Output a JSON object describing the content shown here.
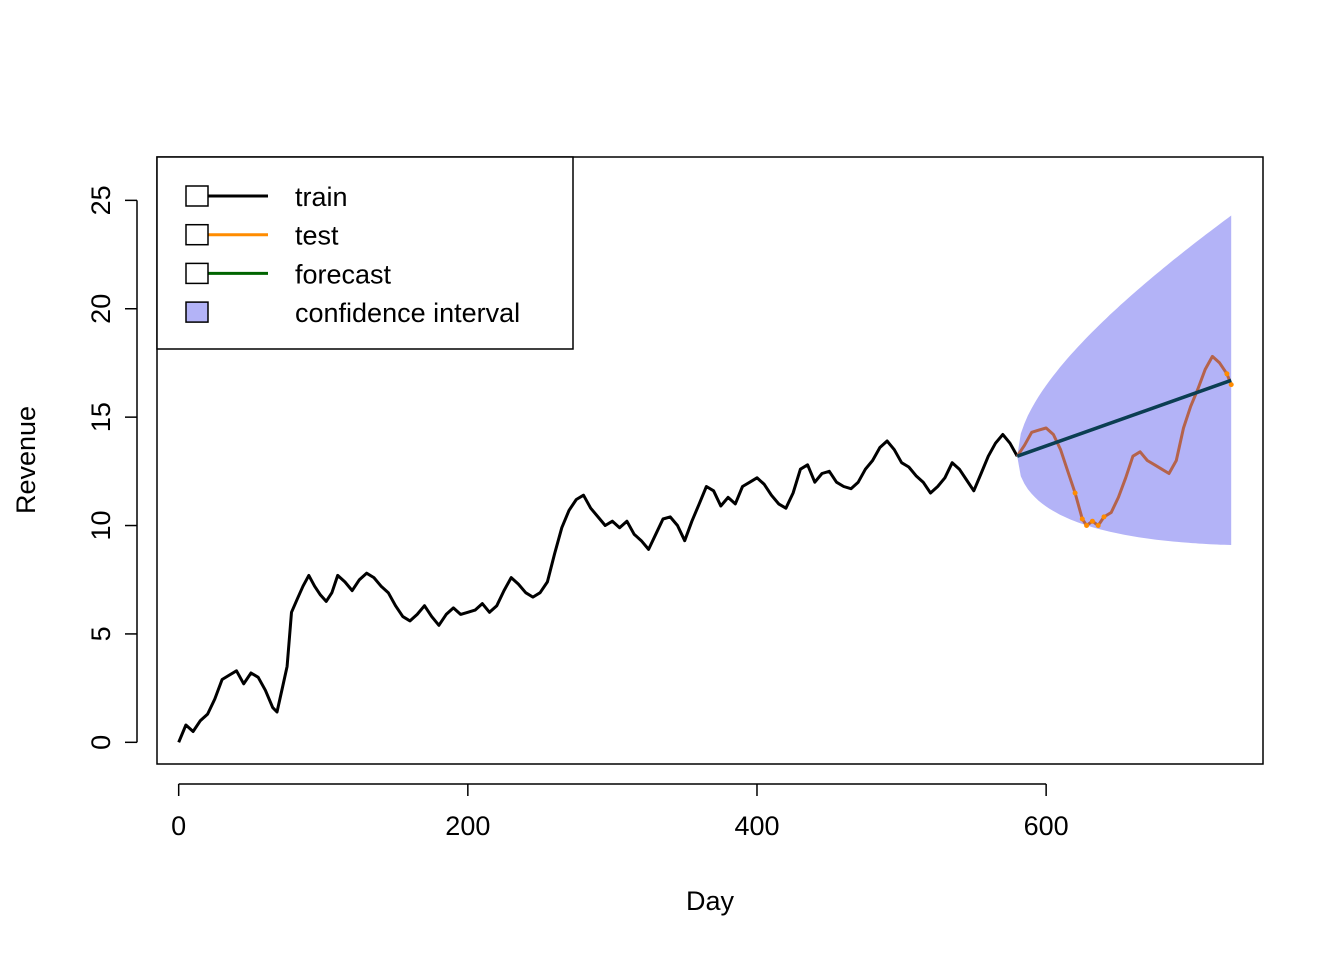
{
  "chart_data": {
    "type": "line",
    "title": "",
    "xlabel": "Day",
    "ylabel": "Revenue",
    "xlim": [
      -15,
      750
    ],
    "ylim": [
      -1,
      27
    ],
    "x_ticks": [
      0,
      200,
      400,
      600
    ],
    "y_ticks": [
      0,
      5,
      10,
      15,
      20,
      25
    ],
    "grid": false,
    "legend_position": "top-left",
    "legend": [
      {
        "label": "train",
        "kind": "line",
        "color": "#000000"
      },
      {
        "label": "test",
        "kind": "line",
        "color": "#FF8C00"
      },
      {
        "label": "forecast",
        "kind": "line",
        "color": "#006400"
      },
      {
        "label": "confidence interval",
        "kind": "fill",
        "color": "#B3B3F7"
      }
    ],
    "series": [
      {
        "name": "train",
        "color": "#000000",
        "points": [
          [
            0,
            0
          ],
          [
            5,
            0.8
          ],
          [
            10,
            0.5
          ],
          [
            15,
            1.0
          ],
          [
            20,
            1.3
          ],
          [
            25,
            2.0
          ],
          [
            30,
            2.9
          ],
          [
            35,
            3.1
          ],
          [
            40,
            3.3
          ],
          [
            45,
            2.7
          ],
          [
            50,
            3.2
          ],
          [
            55,
            3.0
          ],
          [
            60,
            2.4
          ],
          [
            65,
            1.6
          ],
          [
            68,
            1.4
          ],
          [
            70,
            2.0
          ],
          [
            72,
            2.6
          ],
          [
            75,
            3.5
          ],
          [
            78,
            6.0
          ],
          [
            82,
            6.6
          ],
          [
            86,
            7.2
          ],
          [
            90,
            7.7
          ],
          [
            94,
            7.2
          ],
          [
            98,
            6.8
          ],
          [
            102,
            6.5
          ],
          [
            106,
            6.9
          ],
          [
            110,
            7.7
          ],
          [
            115,
            7.4
          ],
          [
            120,
            7.0
          ],
          [
            125,
            7.5
          ],
          [
            130,
            7.8
          ],
          [
            135,
            7.6
          ],
          [
            140,
            7.2
          ],
          [
            145,
            6.9
          ],
          [
            150,
            6.3
          ],
          [
            155,
            5.8
          ],
          [
            160,
            5.6
          ],
          [
            165,
            5.9
          ],
          [
            170,
            6.3
          ],
          [
            175,
            5.8
          ],
          [
            180,
            5.4
          ],
          [
            185,
            5.9
          ],
          [
            190,
            6.2
          ],
          [
            195,
            5.9
          ],
          [
            200,
            6.0
          ],
          [
            205,
            6.1
          ],
          [
            210,
            6.4
          ],
          [
            215,
            6.0
          ],
          [
            220,
            6.3
          ],
          [
            225,
            7.0
          ],
          [
            230,
            7.6
          ],
          [
            235,
            7.3
          ],
          [
            240,
            6.9
          ],
          [
            245,
            6.7
          ],
          [
            250,
            6.9
          ],
          [
            255,
            7.4
          ],
          [
            260,
            8.7
          ],
          [
            265,
            9.9
          ],
          [
            270,
            10.7
          ],
          [
            275,
            11.2
          ],
          [
            280,
            11.4
          ],
          [
            285,
            10.8
          ],
          [
            290,
            10.4
          ],
          [
            295,
            10.0
          ],
          [
            300,
            10.2
          ],
          [
            305,
            9.9
          ],
          [
            310,
            10.2
          ],
          [
            315,
            9.6
          ],
          [
            320,
            9.3
          ],
          [
            325,
            8.9
          ],
          [
            330,
            9.6
          ],
          [
            335,
            10.3
          ],
          [
            340,
            10.4
          ],
          [
            345,
            10.0
          ],
          [
            350,
            9.3
          ],
          [
            355,
            10.2
          ],
          [
            360,
            11.0
          ],
          [
            365,
            11.8
          ],
          [
            370,
            11.6
          ],
          [
            375,
            10.9
          ],
          [
            380,
            11.3
          ],
          [
            385,
            11.0
          ],
          [
            390,
            11.8
          ],
          [
            395,
            12.0
          ],
          [
            400,
            12.2
          ],
          [
            405,
            11.9
          ],
          [
            410,
            11.4
          ],
          [
            415,
            11.0
          ],
          [
            420,
            10.8
          ],
          [
            425,
            11.5
          ],
          [
            430,
            12.6
          ],
          [
            435,
            12.8
          ],
          [
            440,
            12.0
          ],
          [
            445,
            12.4
          ],
          [
            450,
            12.5
          ],
          [
            455,
            12.0
          ],
          [
            460,
            11.8
          ],
          [
            465,
            11.7
          ],
          [
            470,
            12.0
          ],
          [
            475,
            12.6
          ],
          [
            480,
            13.0
          ],
          [
            485,
            13.6
          ],
          [
            490,
            13.9
          ],
          [
            495,
            13.5
          ],
          [
            500,
            12.9
          ],
          [
            505,
            12.7
          ],
          [
            510,
            12.3
          ],
          [
            515,
            12.0
          ],
          [
            520,
            11.5
          ],
          [
            525,
            11.8
          ],
          [
            530,
            12.2
          ],
          [
            535,
            12.9
          ],
          [
            540,
            12.6
          ],
          [
            545,
            12.1
          ],
          [
            550,
            11.6
          ],
          [
            555,
            12.4
          ],
          [
            560,
            13.2
          ],
          [
            565,
            13.8
          ],
          [
            570,
            14.2
          ],
          [
            575,
            13.8
          ],
          [
            580,
            13.2
          ]
        ]
      },
      {
        "name": "test",
        "color": "#FF8C00",
        "points": [
          [
            580,
            13.2
          ],
          [
            585,
            13.7
          ],
          [
            590,
            14.3
          ],
          [
            595,
            14.4
          ],
          [
            600,
            14.5
          ],
          [
            605,
            14.2
          ],
          [
            610,
            13.5
          ],
          [
            615,
            12.5
          ],
          [
            620,
            11.5
          ],
          [
            625,
            10.3
          ],
          [
            628,
            10.0
          ],
          [
            632,
            10.2
          ],
          [
            636,
            10.0
          ],
          [
            640,
            10.4
          ],
          [
            645,
            10.6
          ],
          [
            650,
            11.3
          ],
          [
            655,
            12.2
          ],
          [
            660,
            13.2
          ],
          [
            665,
            13.4
          ],
          [
            670,
            13.0
          ],
          [
            675,
            12.8
          ],
          [
            680,
            12.6
          ],
          [
            685,
            12.4
          ],
          [
            690,
            13.0
          ],
          [
            695,
            14.5
          ],
          [
            700,
            15.5
          ],
          [
            705,
            16.3
          ],
          [
            710,
            17.2
          ],
          [
            715,
            17.8
          ],
          [
            720,
            17.5
          ],
          [
            725,
            17.0
          ],
          [
            728,
            16.5
          ]
        ]
      },
      {
        "name": "forecast",
        "color": "#006400",
        "points": [
          [
            580,
            13.2
          ],
          [
            728,
            16.7
          ]
        ]
      }
    ],
    "confidence_interval": {
      "name": "confidence interval",
      "color": "#B3B3F7",
      "x_start": 580,
      "x_end": 728,
      "center_start": 13.2,
      "center_end": 16.7,
      "upper_end": 24.3,
      "lower_end": 9.1
    },
    "overlap_color": "#B5634B",
    "forecast_line_color": "#0B3E52"
  }
}
